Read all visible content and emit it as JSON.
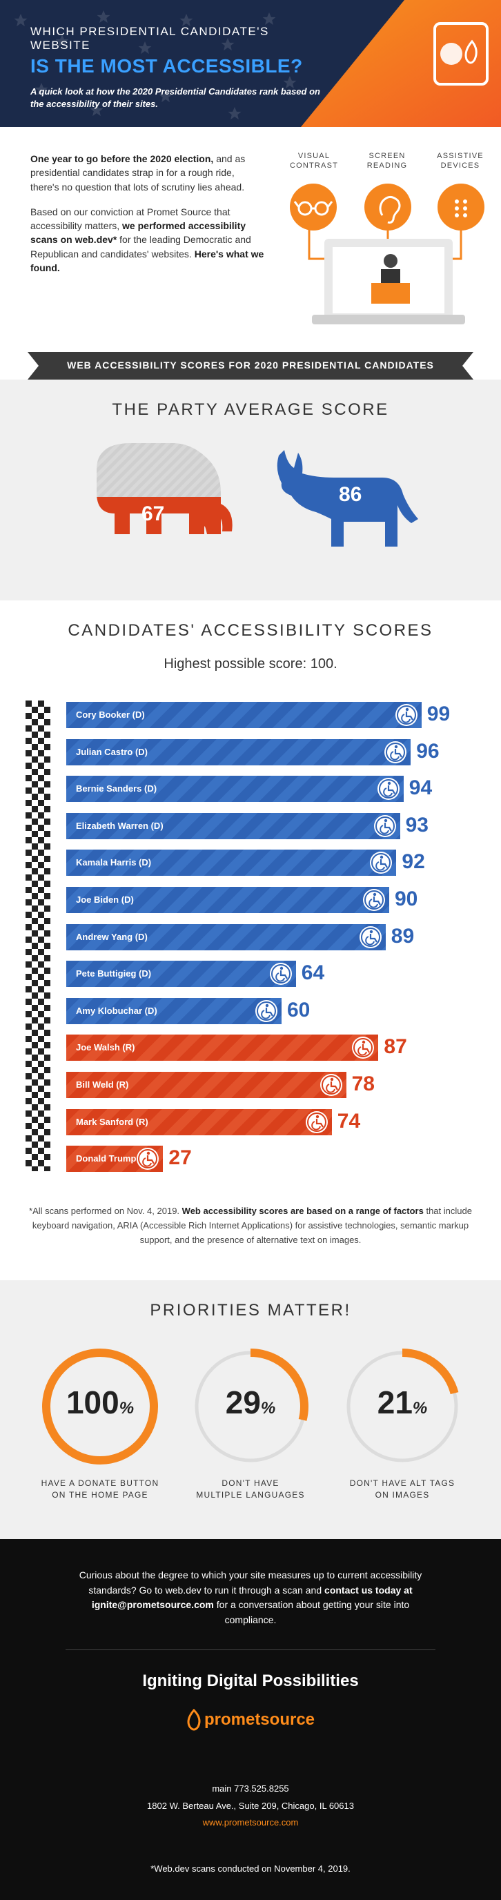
{
  "header": {
    "kicker": "WHICH PRESIDENTIAL CANDIDATE'S WEBSITE",
    "headline": "IS THE MOST ACCESSIBLE?",
    "subtitle": "A quick look at how the 2020 Presidential Candidates rank based on the accessibility of their sites."
  },
  "intro": {
    "p1_bold": "One year to go before the 2020 election,",
    "p1_rest": " and as presidential candidates strap in for a rough ride, there's no question that lots of scrutiny lies ahead.",
    "p2_start": "Based on our conviction at Promet Source that accessibility matters, ",
    "p2_bold": "we performed accessibility scans on web.dev*",
    "p2_mid": " for the leading Democratic and Republican and candidates' websites. ",
    "p2_bold2": "Here's what we found.",
    "icon_labels": [
      "VISUAL CONTRAST",
      "SCREEN READING",
      "ASSISTIVE DEVICES"
    ],
    "icon_names": [
      "glasses-icon",
      "hearing-icon",
      "keypad-icon"
    ]
  },
  "banner": {
    "text": "WEB ACCESSIBILITY SCORES FOR 2020 PRESIDENTIAL CANDIDATES"
  },
  "party": {
    "title": "THE PARTY AVERAGE SCORE",
    "republican_score": "67",
    "democrat_score": "86"
  },
  "candidates": {
    "title": "CANDIDATES' ACCESSIBILITY SCORES",
    "subtitle": "Highest possible score: 100."
  },
  "colors": {
    "democrat": "#2f63b5",
    "republican": "#d9401b",
    "orange": "#f5861f",
    "navy": "#1b2a4a"
  },
  "chart_data": {
    "type": "bar",
    "orientation": "horizontal",
    "title": "CANDIDATES' ACCESSIBILITY SCORES",
    "subtitle": "Highest possible score: 100.",
    "xlim": [
      0,
      100
    ],
    "categories": [
      "Cory Booker (D)",
      "Julian Castro (D)",
      "Bernie Sanders (D)",
      "Elizabeth Warren (D)",
      "Kamala Harris (D)",
      "Joe Biden (D)",
      "Andrew Yang (D)",
      "Pete Buttigieg (D)",
      "Amy Klobuchar (D)",
      "Joe Walsh (R)",
      "Bill Weld (R)",
      "Mark Sanford (R)",
      "Donald Trump (R)"
    ],
    "values": [
      99,
      96,
      94,
      93,
      92,
      90,
      89,
      64,
      60,
      87,
      78,
      74,
      27
    ],
    "party": [
      "D",
      "D",
      "D",
      "D",
      "D",
      "D",
      "D",
      "D",
      "D",
      "R",
      "R",
      "R",
      "R"
    ]
  },
  "footnote": {
    "start": "*All scans performed on Nov. 4, 2019. ",
    "bold": "Web accessibility scores are based on a range of factors",
    "rest": " that include keyboard navigation, ARIA (Accessible Rich Internet Applications) for assistive technologies, semantic markup support, and the presence of alternative text on images."
  },
  "priorities": {
    "title": "PRIORITIES MATTER!",
    "items": [
      {
        "value": 100,
        "label_line1": "HAVE A DONATE BUTTON",
        "label_line2": "ON THE HOME PAGE"
      },
      {
        "value": 29,
        "label_line1": "DON'T HAVE",
        "label_line2": "MULTIPLE LANGUAGES"
      },
      {
        "value": 21,
        "label_line1": "DON'T HAVE ALT TAGS",
        "label_line2": "ON IMAGES"
      }
    ],
    "percent_symbol": "%"
  },
  "footer": {
    "cta_start": "Curious about the degree to which your site measures up to current accessibility standards? Go to web.dev to run it through a scan and ",
    "cta_bold": "contact us today at ignite@prometsource.com",
    "cta_end": " for a conversation about getting your site into compliance.",
    "tagline": "Igniting Digital Possibilities",
    "logo_text": "prometsource",
    "phone": "main 773.525.8255",
    "address": "1802 W. Berteau Ave., Suite 209, Chicago, IL 60613",
    "url": "www.prometsource.com",
    "scan_note": "*Web.dev scans conducted on November 4, 2019."
  }
}
